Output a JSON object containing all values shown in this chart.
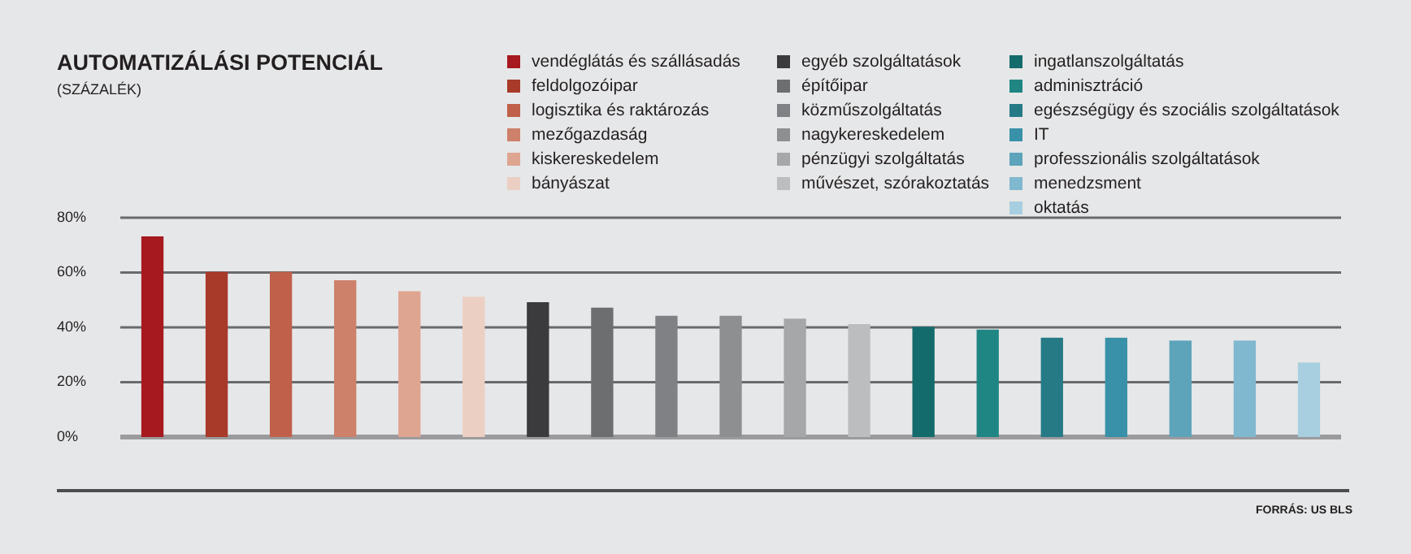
{
  "chart_data": {
    "type": "bar",
    "title": "AUTOMATIZÁLÁSI POTENCIÁL",
    "subtitle": "(SZÁZALÉK)",
    "categories": [
      null,
      null,
      null,
      null,
      null,
      null,
      null,
      null,
      null,
      null,
      null,
      null,
      null,
      null,
      null,
      null,
      null,
      null,
      null
    ],
    "series": [
      {
        "name": "vendéglátás és szállásadás",
        "color": "#a6191e",
        "values": [
          73,
          null,
          null,
          null,
          null,
          null,
          null,
          null,
          null,
          null,
          null,
          null,
          null,
          null,
          null,
          null,
          null,
          null,
          null
        ]
      },
      {
        "name": "feldolgozóipar",
        "color": "#a83a2a",
        "values": [
          null,
          60,
          null,
          null,
          null,
          null,
          null,
          null,
          null,
          null,
          null,
          null,
          null,
          null,
          null,
          null,
          null,
          null,
          null
        ]
      },
      {
        "name": "logisztika és raktározás",
        "color": "#c0604a",
        "values": [
          null,
          null,
          60,
          null,
          null,
          null,
          null,
          null,
          null,
          null,
          null,
          null,
          null,
          null,
          null,
          null,
          null,
          null,
          null
        ]
      },
      {
        "name": "mezőgazdaság",
        "color": "#cd806a",
        "values": [
          null,
          null,
          null,
          57,
          null,
          null,
          null,
          null,
          null,
          null,
          null,
          null,
          null,
          null,
          null,
          null,
          null,
          null,
          null
        ]
      },
      {
        "name": "kiskereskedelem",
        "color": "#dea591",
        "values": [
          null,
          null,
          null,
          null,
          53,
          null,
          null,
          null,
          null,
          null,
          null,
          null,
          null,
          null,
          null,
          null,
          null,
          null,
          null
        ]
      },
      {
        "name": "bányászat",
        "color": "#eccfc3",
        "values": [
          null,
          null,
          null,
          null,
          null,
          51,
          null,
          null,
          null,
          null,
          null,
          null,
          null,
          null,
          null,
          null,
          null,
          null,
          null
        ]
      },
      {
        "name": "egyéb szolgáltatások",
        "color": "#3b3b3d",
        "values": [
          null,
          null,
          null,
          null,
          null,
          null,
          49,
          null,
          null,
          null,
          null,
          null,
          null,
          null,
          null,
          null,
          null,
          null,
          null
        ]
      },
      {
        "name": "építőipar",
        "color": "#6d6e70",
        "values": [
          null,
          null,
          null,
          null,
          null,
          null,
          null,
          47,
          null,
          null,
          null,
          null,
          null,
          null,
          null,
          null,
          null,
          null,
          null
        ]
      },
      {
        "name": "közműszolgáltatás",
        "color": "#808184",
        "values": [
          null,
          null,
          null,
          null,
          null,
          null,
          null,
          null,
          44,
          null,
          null,
          null,
          null,
          null,
          null,
          null,
          null,
          null,
          null
        ]
      },
      {
        "name": "nagykereskedelem",
        "color": "#8e8f91",
        "values": [
          null,
          null,
          null,
          null,
          null,
          null,
          null,
          null,
          null,
          44,
          null,
          null,
          null,
          null,
          null,
          null,
          null,
          null,
          null
        ]
      },
      {
        "name": "pénzügyi szolgáltatás",
        "color": "#a6a7a9",
        "values": [
          null,
          null,
          null,
          null,
          null,
          null,
          null,
          null,
          null,
          null,
          43,
          null,
          null,
          null,
          null,
          null,
          null,
          null,
          null
        ]
      },
      {
        "name": "művészet, szórakoztatás",
        "color": "#bcbdbf",
        "values": [
          null,
          null,
          null,
          null,
          null,
          null,
          null,
          null,
          null,
          null,
          null,
          41,
          null,
          null,
          null,
          null,
          null,
          null,
          null
        ]
      },
      {
        "name": "ingatlanszolgáltatás",
        "color": "#146b6c",
        "values": [
          null,
          null,
          null,
          null,
          null,
          null,
          null,
          null,
          null,
          null,
          null,
          null,
          40,
          null,
          null,
          null,
          null,
          null,
          null
        ]
      },
      {
        "name": "adminisztráció",
        "color": "#1f8683",
        "values": [
          null,
          null,
          null,
          null,
          null,
          null,
          null,
          null,
          null,
          null,
          null,
          null,
          null,
          39,
          null,
          null,
          null,
          null,
          null
        ]
      },
      {
        "name": "egészségügy és szociális szolgáltatások",
        "color": "#267a86",
        "values": [
          null,
          null,
          null,
          null,
          null,
          null,
          null,
          null,
          null,
          null,
          null,
          null,
          null,
          null,
          36,
          null,
          null,
          null,
          null
        ]
      },
      {
        "name": "IT",
        "color": "#3891a8",
        "values": [
          null,
          null,
          null,
          null,
          null,
          null,
          null,
          null,
          null,
          null,
          null,
          null,
          null,
          null,
          null,
          36,
          null,
          null,
          null
        ]
      },
      {
        "name": "professzionális szolgáltatások",
        "color": "#5da4bb",
        "values": [
          null,
          null,
          null,
          null,
          null,
          null,
          null,
          null,
          null,
          null,
          null,
          null,
          null,
          null,
          null,
          null,
          35,
          null,
          null
        ]
      },
      {
        "name": "menedzsment",
        "color": "#80b8cf",
        "values": [
          null,
          null,
          null,
          null,
          null,
          null,
          null,
          null,
          null,
          null,
          null,
          null,
          null,
          null,
          null,
          null,
          null,
          35,
          null
        ]
      },
      {
        "name": "oktatás",
        "color": "#a7cfdf",
        "values": [
          null,
          null,
          null,
          null,
          null,
          null,
          null,
          null,
          null,
          null,
          null,
          null,
          null,
          null,
          null,
          null,
          null,
          null,
          27
        ]
      }
    ],
    "ylim": [
      0,
      80
    ],
    "yticks": [
      {
        "value": 0,
        "label": "0%"
      },
      {
        "value": 20,
        "label": "20%"
      },
      {
        "value": 40,
        "label": "40%"
      },
      {
        "value": 60,
        "label": "60%"
      },
      {
        "value": 80,
        "label": "80%"
      }
    ],
    "grid": "y",
    "legend": "top right",
    "annotations": [
      "FORRÁS: US BLS"
    ]
  }
}
